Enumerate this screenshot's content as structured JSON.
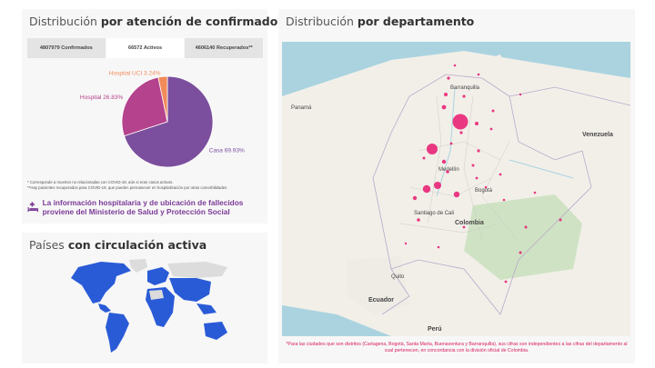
{
  "confirmados": {
    "title_pre": "Distribución ",
    "title_bold": "por atención de confirmados",
    "tabs": [
      "4807979 Confirmados",
      "66572 Activos",
      "4606140 Recuperados**"
    ],
    "active_tab": 1,
    "pie_labels": [
      "Casa 69.93%",
      "Hospital 26.83%",
      "Hospital UCI 3.24%"
    ],
    "notes": [
      "* Corresponde a muertes no relacionadas con COVID-19, aún si eran casos activos.",
      "**Hay pacientes recuperados para COVID-19, que pueden permanecer en hospitalización por otras comorbilidades"
    ],
    "hospital_info": "La información hospitalaria y de ubicación de fallecidos proviene del Ministerio de Salud y Protección Social",
    "colors": {
      "casa": "#7b4f9d",
      "hospital": "#b4428c",
      "uci": "#f28b5a",
      "accent": "#7b3a97"
    }
  },
  "chart_data": {
    "type": "pie",
    "title": "Distribución por atención de confirmados",
    "categories": [
      "Casa",
      "Hospital",
      "Hospital UCI"
    ],
    "values": [
      69.93,
      26.83,
      3.24
    ]
  },
  "paises": {
    "title_pre": "Países ",
    "title_bold": "con circulación activa",
    "active_color": "#2a5bd7",
    "inactive_color": "#dcdcdc"
  },
  "departamento": {
    "title_pre": "Distribución ",
    "title_bold": "por departamento",
    "map_labels": [
      "Barranquilla",
      "Venezuela",
      "Medellín",
      "Bogotá",
      "Santiago de Cali",
      "Colombia",
      "Quito",
      "Ecuador",
      "Perú",
      "Panamá"
    ],
    "footnote": "*Para las ciudades que son distritos (Cartagena, Bogotá, Santa Marta, Buenaventura y Barranquilla), sus cifras son independientes a las cifras del departamento al cual pertenecen, en concordancia con la división oficial de Colombia.",
    "bubble_color": "#e8176f"
  }
}
